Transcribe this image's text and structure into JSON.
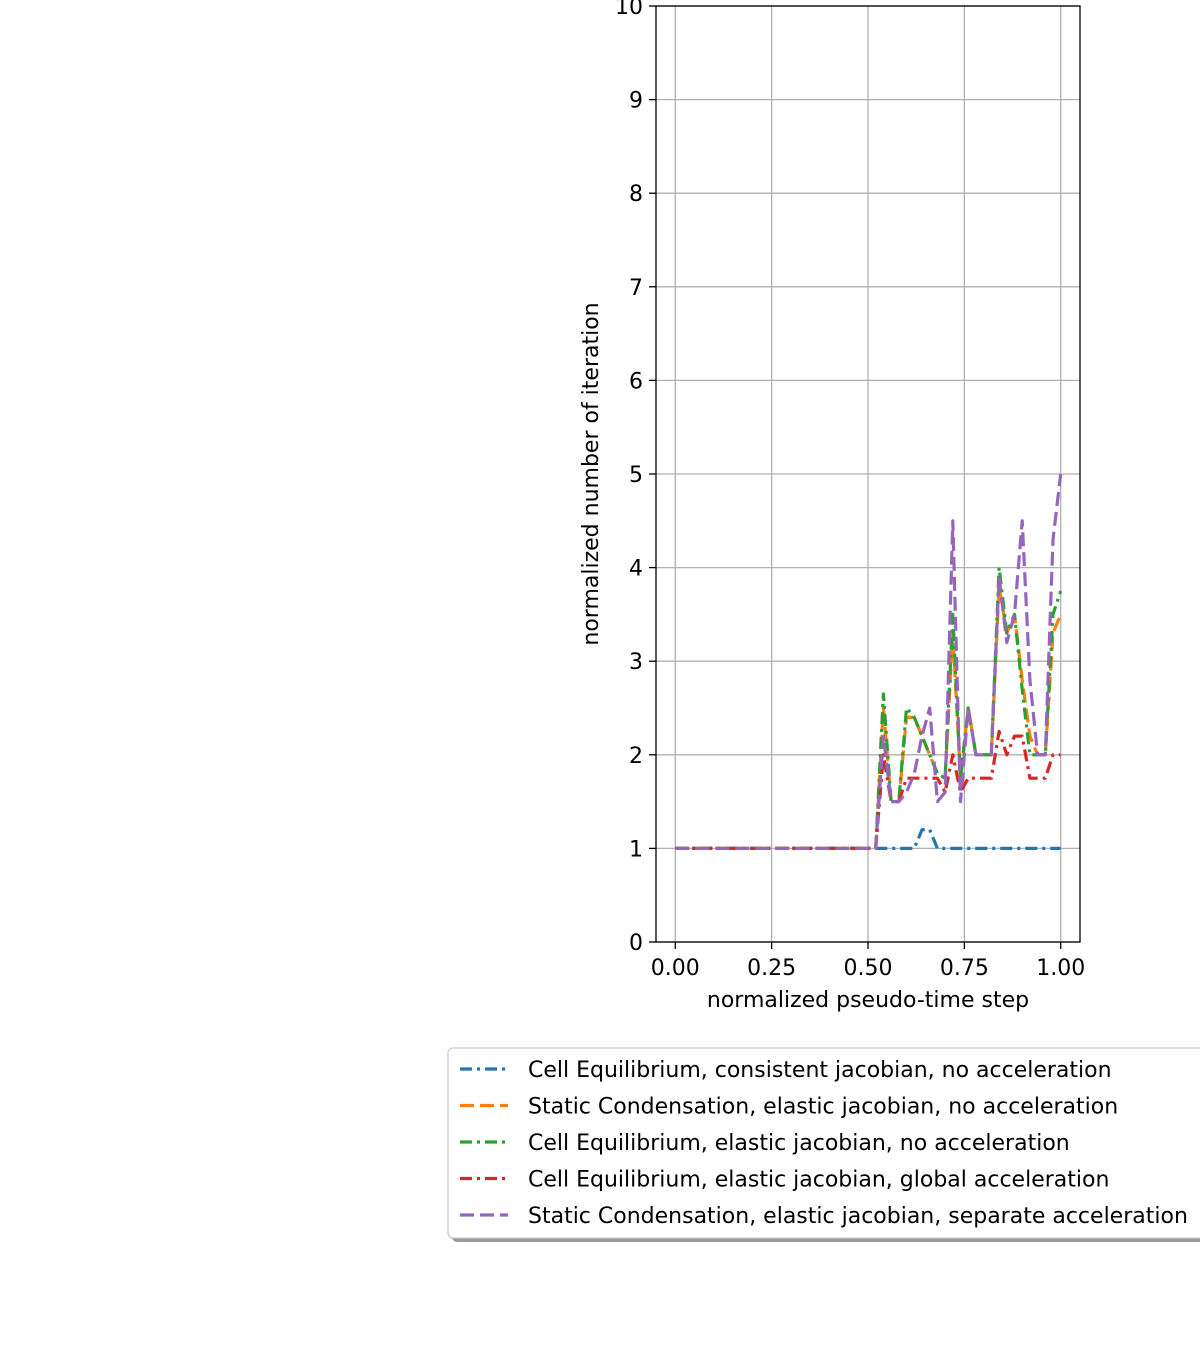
{
  "chart_data": {
    "type": "line",
    "title": "",
    "xlabel": "normalized pseudo-time step",
    "ylabel": "normalized number of iteration",
    "xlim": [
      -0.05,
      1.05
    ],
    "ylim": [
      0,
      10
    ],
    "xticks": [
      "0.00",
      "0.25",
      "0.50",
      "0.75",
      "1.00"
    ],
    "xtick_values": [
      0.0,
      0.25,
      0.5,
      0.75,
      1.0
    ],
    "yticks": [
      "0",
      "1",
      "2",
      "3",
      "4",
      "5",
      "6",
      "7",
      "8",
      "9",
      "10"
    ],
    "ytick_values": [
      0,
      1,
      2,
      3,
      4,
      5,
      6,
      7,
      8,
      9,
      10
    ],
    "grid": true,
    "legend_position": "below plot",
    "series": [
      {
        "name": "Cell Equilibrium, consistent jacobian, no acceleration",
        "color": "#1f77b4",
        "dash": "dashdot",
        "x": [
          0,
          0.5,
          0.52,
          0.54,
          0.56,
          0.58,
          0.6,
          0.62,
          0.64,
          0.66,
          0.68,
          0.7,
          0.72,
          0.74,
          0.76,
          0.78,
          0.8,
          0.82,
          0.84,
          0.86,
          0.88,
          0.9,
          0.92,
          0.94,
          0.96,
          0.98,
          1.0
        ],
        "y": [
          1,
          1,
          1,
          1,
          1,
          1,
          1,
          1,
          1.2,
          1.2,
          1,
          1,
          1,
          1,
          1,
          1,
          1,
          1,
          1,
          1,
          1,
          1,
          1,
          1,
          1,
          1,
          1
        ]
      },
      {
        "name": "Static Condensation, elastic jacobian, no acceleration",
        "color": "#ff7f0e",
        "dash": "dashed",
        "x": [
          0,
          0.5,
          0.52,
          0.54,
          0.56,
          0.58,
          0.6,
          0.62,
          0.64,
          0.66,
          0.68,
          0.7,
          0.72,
          0.74,
          0.76,
          0.78,
          0.8,
          0.82,
          0.84,
          0.86,
          0.88,
          0.9,
          0.92,
          0.94,
          0.96,
          0.98,
          1.0
        ],
        "y": [
          1,
          1,
          1,
          2.5,
          1.5,
          1.5,
          2.4,
          2.4,
          2.2,
          2,
          1.8,
          1.75,
          3.3,
          1.75,
          2.5,
          2,
          2,
          2,
          3.8,
          3.3,
          3.5,
          2.8,
          2.2,
          2.0,
          2.0,
          3.3,
          3.5
        ]
      },
      {
        "name": "Cell Equilibrium, elastic jacobian, no acceleration",
        "color": "#2ca02c",
        "dash": "dashdot",
        "x": [
          0,
          0.5,
          0.52,
          0.54,
          0.56,
          0.58,
          0.6,
          0.62,
          0.64,
          0.66,
          0.68,
          0.7,
          0.72,
          0.74,
          0.76,
          0.78,
          0.8,
          0.82,
          0.84,
          0.86,
          0.88,
          0.9,
          0.92,
          0.94,
          0.96,
          0.98,
          1.0
        ],
        "y": [
          1,
          1,
          1,
          2.65,
          1.5,
          1.5,
          2.5,
          2.4,
          2.2,
          2,
          1.8,
          1.75,
          3.5,
          1.75,
          2.5,
          2,
          2,
          2,
          4.0,
          3.3,
          3.5,
          2.7,
          2.0,
          2.0,
          2.0,
          3.5,
          3.75
        ]
      },
      {
        "name": "Cell Equilibrium, elastic jacobian, global acceleration",
        "color": "#d62728",
        "dash": "dashdot",
        "x": [
          0,
          0.5,
          0.52,
          0.54,
          0.56,
          0.58,
          0.6,
          0.62,
          0.64,
          0.66,
          0.68,
          0.7,
          0.72,
          0.74,
          0.76,
          0.78,
          0.8,
          0.82,
          0.84,
          0.86,
          0.88,
          0.9,
          0.92,
          0.94,
          0.96,
          0.98,
          1.0
        ],
        "y": [
          1,
          1,
          1,
          2.0,
          1.5,
          1.5,
          1.75,
          1.75,
          1.75,
          1.75,
          1.75,
          1.6,
          2.0,
          1.6,
          1.75,
          1.75,
          1.75,
          1.75,
          2.25,
          2.0,
          2.2,
          2.2,
          1.75,
          1.75,
          1.75,
          2.0,
          2.0
        ]
      },
      {
        "name": "Static Condensation, elastic jacobian, separate acceleration",
        "color": "#9467bd",
        "dash": "dashed",
        "x": [
          0,
          0.5,
          0.52,
          0.54,
          0.56,
          0.58,
          0.6,
          0.62,
          0.64,
          0.66,
          0.68,
          0.7,
          0.72,
          0.74,
          0.76,
          0.78,
          0.8,
          0.82,
          0.84,
          0.86,
          0.88,
          0.9,
          0.92,
          0.94,
          0.96,
          0.98,
          1.0
        ],
        "y": [
          1,
          1,
          1,
          2.2,
          1.5,
          1.5,
          1.6,
          1.8,
          2.2,
          2.5,
          1.5,
          1.6,
          4.5,
          1.5,
          2.5,
          2,
          2,
          2,
          3.9,
          3.2,
          3.5,
          4.5,
          2.8,
          2.0,
          2.0,
          4.3,
          5.0
        ]
      }
    ]
  }
}
